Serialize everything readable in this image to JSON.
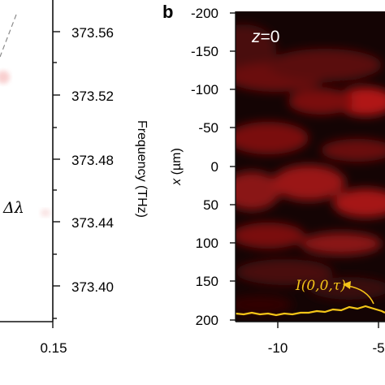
{
  "figure": {
    "left_panel": {
      "freq_axis_label": "Frequency (THz)",
      "annotation": "Δλ",
      "x_tick_label": "0.15",
      "freq_ticks": [
        "373.56",
        "373.52",
        "373.48",
        "373.44",
        "373.40"
      ],
      "freq_tick_values": [
        373.56,
        373.52,
        373.48,
        373.44,
        373.4
      ]
    },
    "right_panel": {
      "panel_letter": "b",
      "slice_label_var": "z",
      "slice_label_eq": "=0",
      "y_axis_var": "x",
      "y_axis_unit": " (µm)",
      "y_ticks": [
        "-200",
        "-150",
        "-100",
        "-50",
        "0",
        "50",
        "100",
        "150",
        "200"
      ],
      "y_tick_values": [
        -200,
        -150,
        -100,
        -50,
        0,
        50,
        100,
        150,
        200
      ],
      "x_ticks": [
        "-10",
        "-5"
      ],
      "x_tick_values": [
        -10,
        -5
      ],
      "curve_label": "I(0,0,τ)",
      "curve_color": "#f5c518",
      "heatmap_color": "#c01818"
    }
  }
}
